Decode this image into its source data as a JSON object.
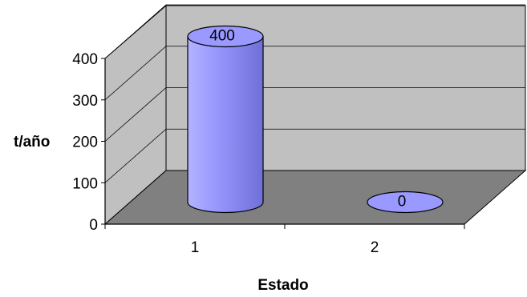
{
  "chart_data": {
    "type": "bar",
    "style": "3d-cylinder",
    "categories": [
      "1",
      "2"
    ],
    "series": [
      {
        "values": [
          400,
          0
        ]
      }
    ],
    "data_labels": [
      "400",
      "0"
    ],
    "xlabel": "Estado",
    "ylabel": "t/año",
    "ylim": [
      0,
      400
    ],
    "yticks": [
      "0",
      "100",
      "200",
      "300",
      "400"
    ],
    "grid": true,
    "legend": "none",
    "colors": {
      "bar": "#9999ff",
      "bar_light": "#b3b3ff",
      "bar_dark": "#6f6fd8",
      "floor": "#808080",
      "back_wall": "#c0c0c0",
      "side_wall": "#c0c0c0",
      "gridline": "#000000"
    }
  }
}
